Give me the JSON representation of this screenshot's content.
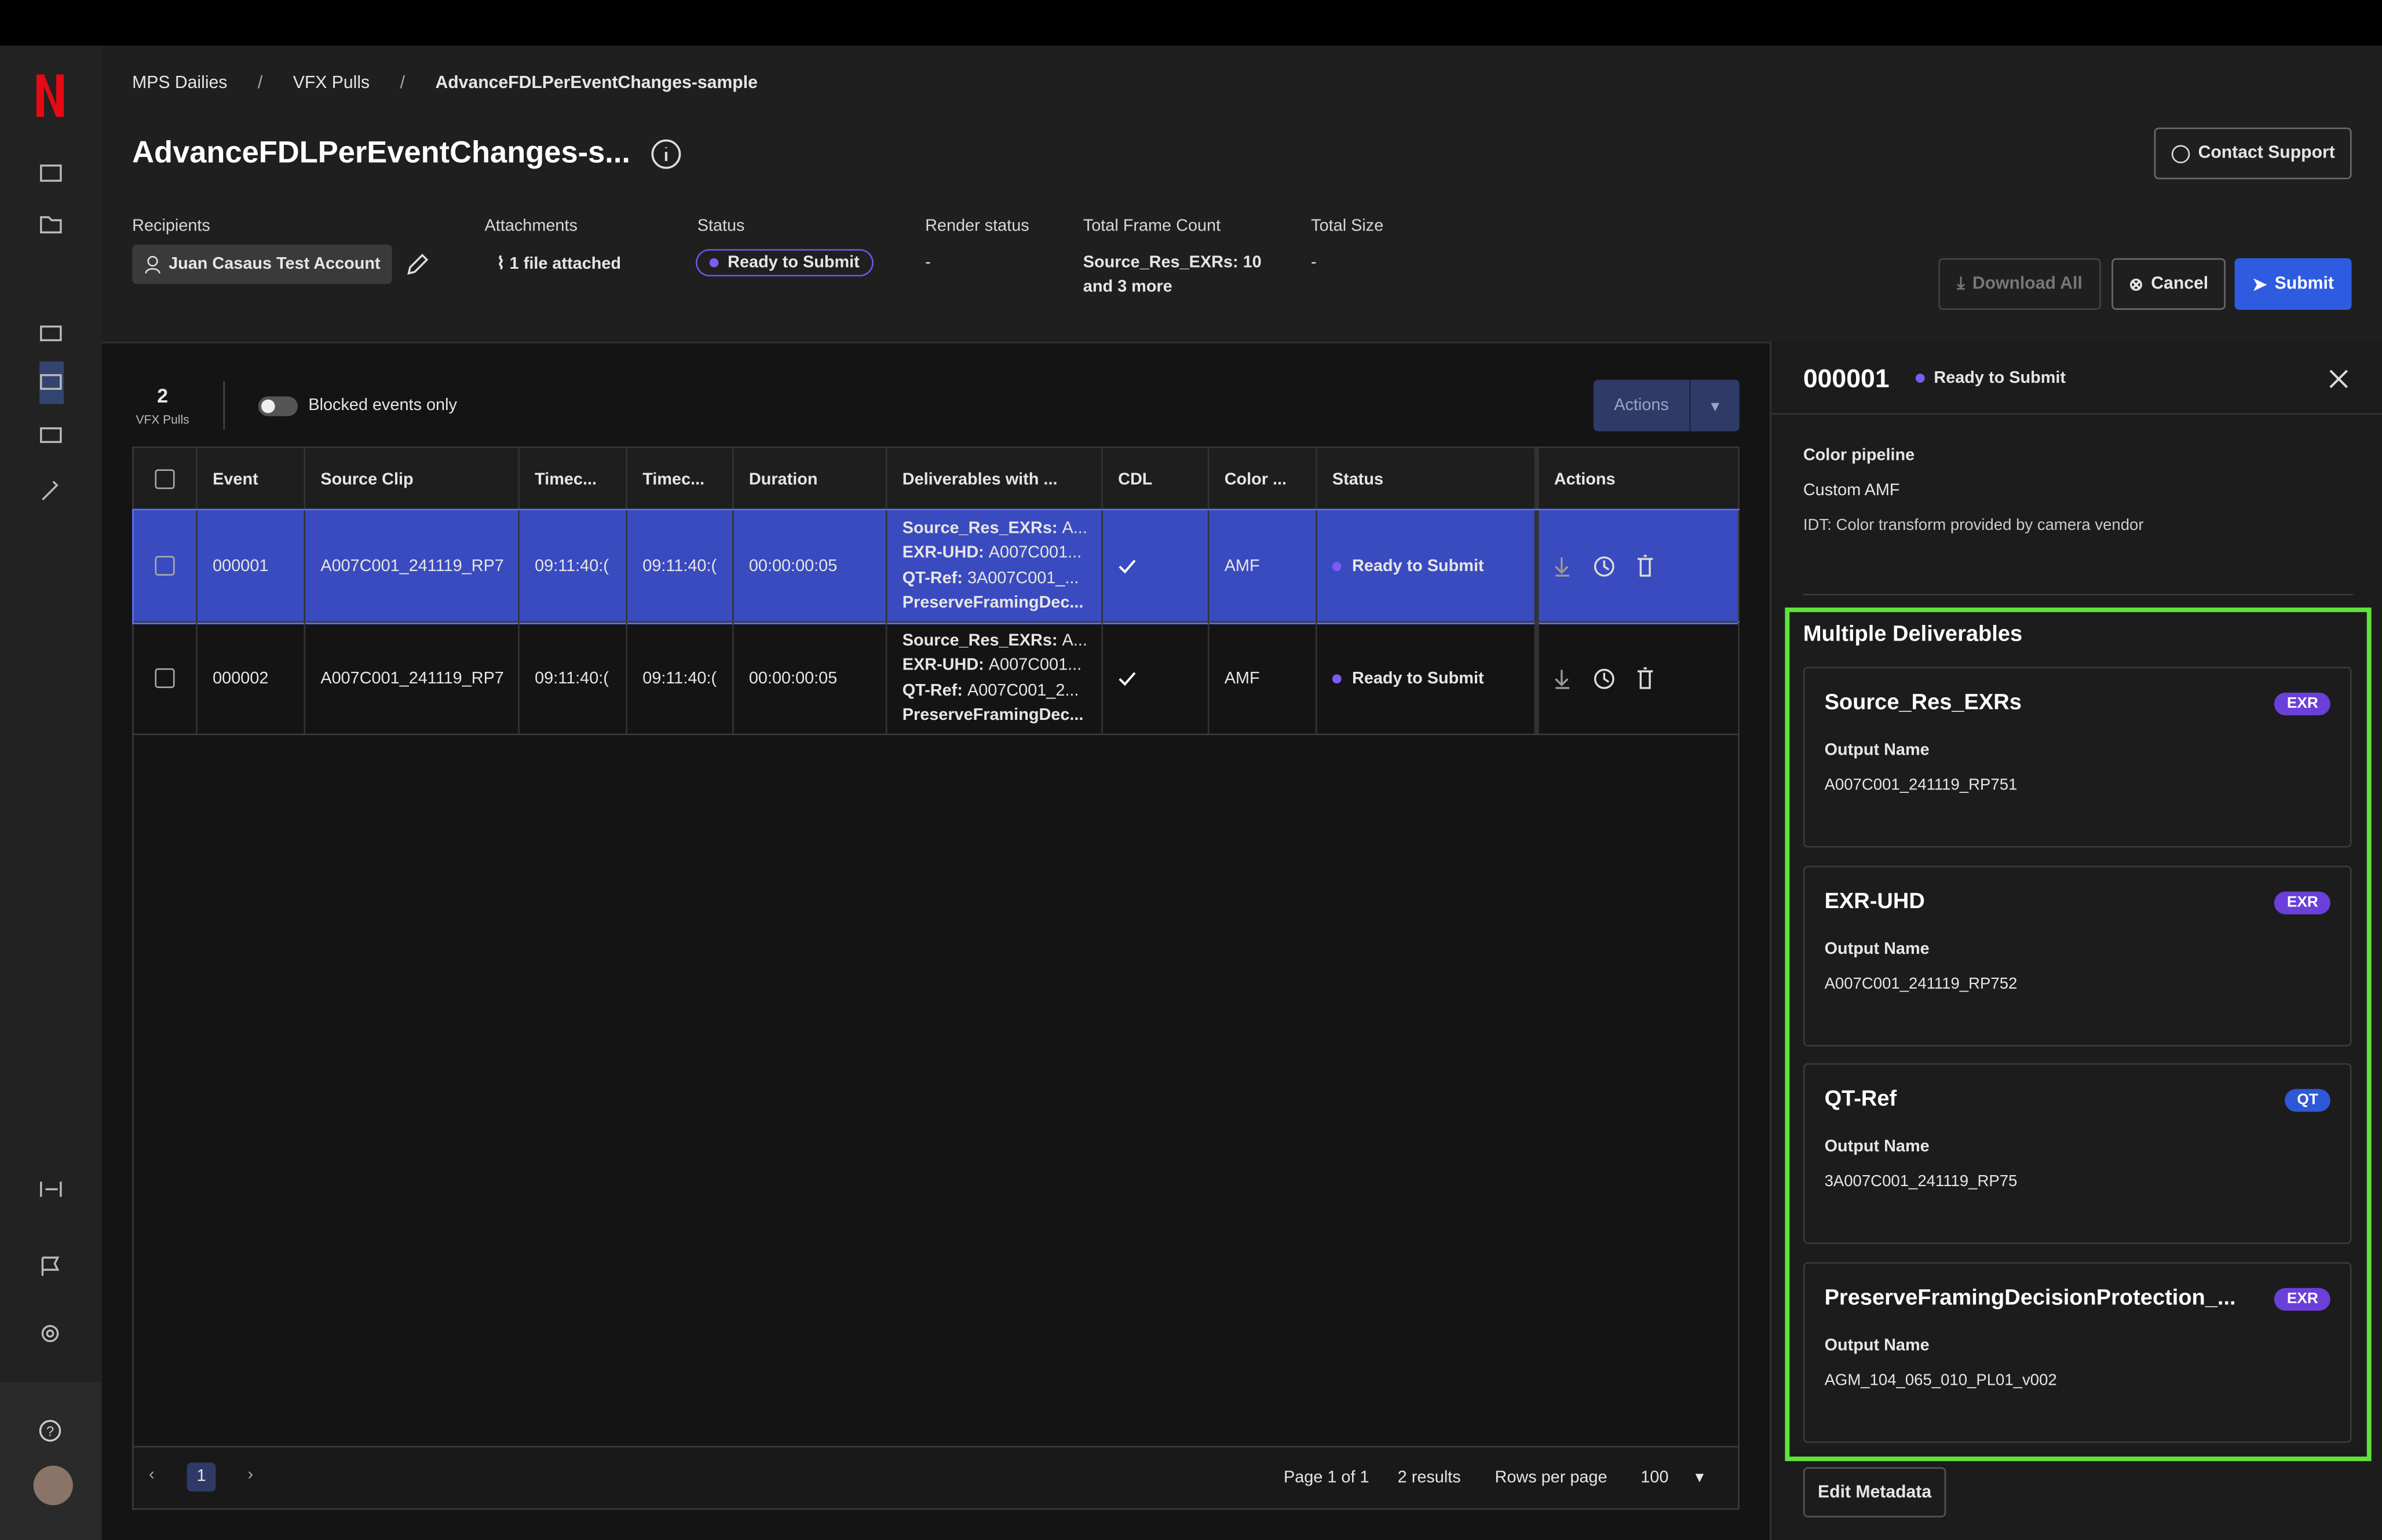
{
  "breadcrumb": [
    "MPS Dailies",
    "VFX Pulls",
    "AdvanceFDLPerEventChanges-sample"
  ],
  "header": {
    "title": "AdvanceFDLPerEventChanges-s...",
    "contact_support": "Contact Support"
  },
  "meta": [
    {
      "label": "Recipients",
      "value": "Juan Casaus Test Account"
    },
    {
      "label": "Attachments",
      "value": "1 file attached"
    },
    {
      "label": "Status",
      "value": "Ready to Submit"
    },
    {
      "label": "Render status",
      "value": "-"
    },
    {
      "label": "Total Frame Count",
      "value": "Source_Res_EXRs: 10 and 3 more"
    },
    {
      "label": "Total Size",
      "value": "-"
    }
  ],
  "buttons": {
    "download_all": "Download All",
    "cancel": "Cancel",
    "submit": "Submit"
  },
  "toolbar": {
    "count": "2",
    "count_label": "VFX Pulls",
    "toggle": "Blocked events only",
    "actions": "Actions"
  },
  "table": {
    "columns": [
      "Event",
      "Source Clip",
      "Timec...",
      "Timec...",
      "Duration",
      "Deliverables with ...",
      "CDL",
      "Color ...",
      "Status",
      "Actions"
    ],
    "rows": [
      {
        "event": "000001",
        "source_clip": "A007C001_241119_RP7",
        "tc_in": "09:11:40:(",
        "tc_out": "09:11:40:(",
        "duration": "00:00:00:05",
        "deliverables": [
          {
            "name": "Source_Res_EXRs:",
            "value": "A..."
          },
          {
            "name": "EXR-UHD:",
            "value": "A007C001..."
          },
          {
            "name": "QT-Ref:",
            "value": "3A007C001_..."
          },
          {
            "name": "PreserveFramingDec..."
          }
        ],
        "color": "AMF",
        "status": "Ready to Submit"
      },
      {
        "event": "000002",
        "source_clip": "A007C001_241119_RP7",
        "tc_in": "09:11:40:(",
        "tc_out": "09:11:40:(",
        "duration": "00:00:00:05",
        "deliverables": [
          {
            "name": "Source_Res_EXRs:",
            "value": "A..."
          },
          {
            "name": "EXR-UHD:",
            "value": "A007C001..."
          },
          {
            "name": "QT-Ref:",
            "value": "A007C001_2..."
          },
          {
            "name": "PreserveFramingDec..."
          }
        ],
        "color": "AMF",
        "status": "Ready to Submit"
      }
    ]
  },
  "pagination": {
    "page": "1",
    "page_of": "Page 1 of 1",
    "results": "2 results",
    "rows_per_page": "Rows per page",
    "per_page": "100"
  },
  "panel": {
    "event": "000001",
    "status": "Ready to Submit",
    "section": "Color pipeline",
    "pipeline": "Custom AMF",
    "idt": "IDT: Color transform provided by camera vendor",
    "deliverables_title": "Multiple Deliverables",
    "cards": [
      {
        "name": "Source_Res_EXRs",
        "badge": "EXR",
        "label": "Output Name",
        "value": "A007C001_241119_RP751"
      },
      {
        "name": "EXR-UHD",
        "badge": "EXR",
        "label": "Output Name",
        "value": "A007C001_241119_RP752"
      },
      {
        "name": "QT-Ref",
        "badge": "QT",
        "label": "Output Name",
        "value": "3A007C001_241119_RP75"
      },
      {
        "name": "PreserveFramingDecisionProtection_...",
        "badge": "EXR",
        "label": "Output Name",
        "value": "AGM_104_065_010_PL01_v002"
      }
    ],
    "edit_metadata": "Edit Metadata"
  }
}
